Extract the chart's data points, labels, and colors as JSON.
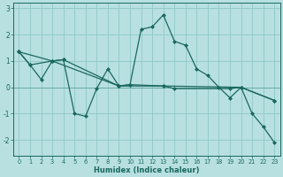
{
  "xlabel": "Humidex (Indice chaleur)",
  "background_color": "#b8e0e0",
  "grid_color": "#90c8c8",
  "line_color": "#1a6860",
  "xlim": [
    -0.5,
    23.5
  ],
  "ylim": [
    -2.6,
    3.2
  ],
  "yticks": [
    -2,
    -1,
    0,
    1,
    2,
    3
  ],
  "xticks": [
    0,
    1,
    2,
    3,
    4,
    5,
    6,
    7,
    8,
    9,
    10,
    11,
    12,
    13,
    14,
    15,
    16,
    17,
    18,
    19,
    20,
    21,
    22,
    23
  ],
  "line1_x": [
    0,
    1,
    2,
    3,
    4,
    5,
    6,
    7,
    8,
    9,
    10,
    11,
    12,
    13,
    14,
    15,
    16,
    17,
    18,
    19,
    20,
    21,
    22,
    23
  ],
  "line1_y": [
    1.35,
    0.85,
    0.3,
    1.0,
    1.05,
    -1.0,
    -1.1,
    -0.05,
    0.7,
    0.05,
    0.1,
    2.2,
    2.3,
    2.75,
    1.75,
    1.6,
    0.7,
    0.45,
    0.0,
    -0.4,
    0.0,
    -1.0,
    -1.5,
    -2.1
  ],
  "line2_x": [
    0,
    1,
    3,
    4,
    9,
    10,
    13,
    14,
    19,
    20,
    23
  ],
  "line2_y": [
    1.35,
    0.85,
    1.0,
    1.05,
    0.05,
    0.1,
    0.05,
    -0.05,
    -0.05,
    0.0,
    -0.5
  ],
  "line3_x": [
    0,
    3,
    9,
    13,
    20,
    23
  ],
  "line3_y": [
    1.35,
    1.0,
    0.05,
    0.05,
    0.0,
    -0.5
  ]
}
